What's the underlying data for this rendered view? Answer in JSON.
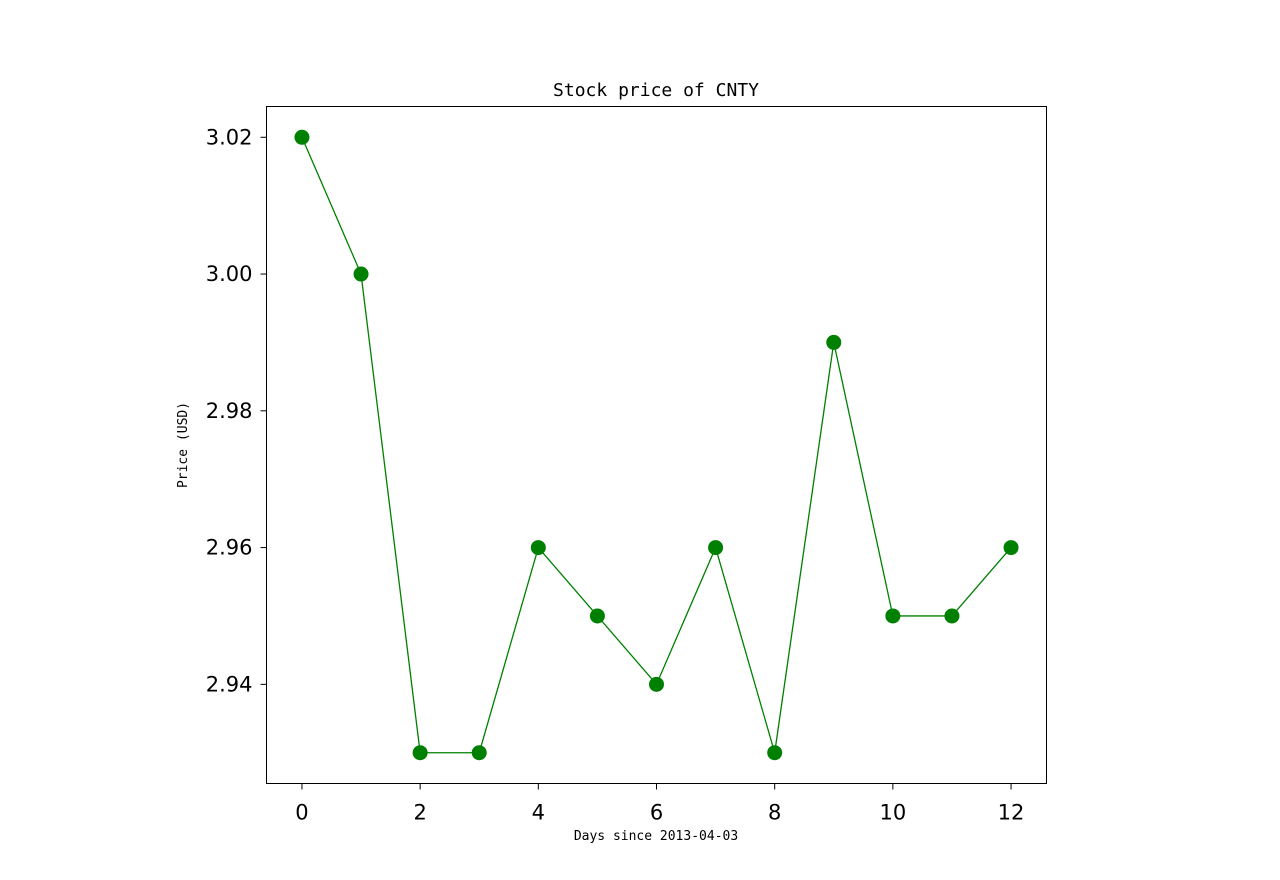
{
  "chart_data": {
    "type": "line",
    "title": "Stock price of CNTY",
    "xlabel": "Days since 2013-04-03",
    "ylabel": "Price (USD)",
    "x": [
      0,
      1,
      2,
      3,
      4,
      5,
      6,
      7,
      8,
      9,
      10,
      11,
      12
    ],
    "series": [
      {
        "values": [
          3.02,
          3.0,
          2.93,
          2.93,
          2.96,
          2.95,
          2.94,
          2.96,
          2.93,
          2.99,
          2.95,
          2.95,
          2.96
        ],
        "color": "#008000",
        "marker": "circle"
      }
    ],
    "xlim": [
      -0.6,
      12.6
    ],
    "ylim": [
      2.9255,
      3.0245
    ],
    "xticks": [
      0,
      2,
      4,
      6,
      8,
      10,
      12
    ],
    "xtick_labels": [
      "0",
      "2",
      "4",
      "6",
      "8",
      "10",
      "12"
    ],
    "yticks": [
      2.94,
      2.96,
      2.98,
      3.0,
      3.02
    ],
    "ytick_labels": [
      "2.94",
      "2.96",
      "2.98",
      "3.00",
      "3.02"
    ],
    "grid": false,
    "legend": "none"
  }
}
